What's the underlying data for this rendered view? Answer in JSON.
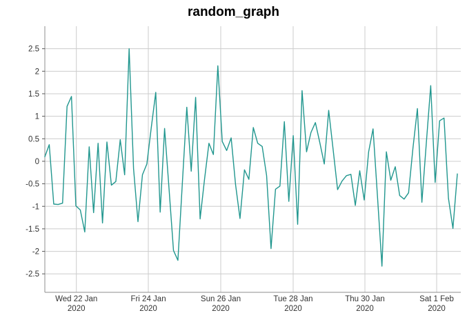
{
  "chart_data": {
    "type": "line",
    "title": "random_graph",
    "x_start": "2020-01-21 03:00",
    "x_step_hours": 3,
    "values": [
      0.1,
      0.37,
      -0.95,
      -0.96,
      -0.93,
      1.22,
      1.44,
      -0.99,
      -1.08,
      -1.57,
      0.32,
      -1.14,
      0.4,
      -1.37,
      0.43,
      -0.53,
      -0.45,
      0.48,
      -0.3,
      2.5,
      -0.16,
      -1.34,
      -0.3,
      -0.06,
      0.75,
      1.53,
      -1.13,
      0.73,
      -0.6,
      -1.98,
      -2.2,
      -0.5,
      1.2,
      -0.22,
      1.42,
      -1.28,
      -0.4,
      0.4,
      0.15,
      2.12,
      0.44,
      0.24,
      0.52,
      -0.52,
      -1.27,
      -0.19,
      -0.4,
      0.75,
      0.4,
      0.33,
      -0.32,
      -1.94,
      -0.62,
      -0.55,
      0.88,
      -0.89,
      0.57,
      -1.4,
      1.57,
      0.21,
      0.64,
      0.86,
      0.41,
      -0.06,
      1.13,
      0.25,
      -0.63,
      -0.44,
      -0.32,
      -0.29,
      -0.98,
      -0.21,
      -0.86,
      0.21,
      0.72,
      -0.8,
      -2.33,
      0.21,
      -0.42,
      -0.12,
      -0.76,
      -0.84,
      -0.7,
      0.3,
      1.17,
      -0.91,
      0.4,
      1.68,
      -0.47,
      0.9,
      0.96,
      -0.82,
      -1.49,
      -0.28
    ],
    "x_ticks": [
      {
        "line1": "Wed 22 Jan",
        "line2": "2020",
        "frac": 0.0758
      },
      {
        "line1": "Fri 24 Jan",
        "line2": "2020",
        "frac": 0.2488
      },
      {
        "line1": "Sun 26 Jan",
        "line2": "2020",
        "frac": 0.4229
      },
      {
        "line1": "Tue 28 Jan",
        "line2": "2020",
        "frac": 0.597
      },
      {
        "line1": "Thu 30 Jan",
        "line2": "2020",
        "frac": 0.7695
      },
      {
        "line1": "Sat 1 Feb",
        "line2": "2020",
        "frac": 0.942
      }
    ],
    "y_ticks": [
      "2.5",
      "2",
      "1.5",
      "1",
      "0.5",
      "0",
      "-0.5",
      "-1",
      "-1.5",
      "-2",
      "-2.5"
    ],
    "ylim": [
      -2.91,
      3.0
    ],
    "grid": true,
    "legend": "none",
    "colors": {
      "line": "#20968e",
      "grid": "#cccccc",
      "axis": "#8c8c8c",
      "tick_mark": "#555555",
      "tick_text": "#333333",
      "title_text": "#000000",
      "background": "#ffffff"
    }
  }
}
